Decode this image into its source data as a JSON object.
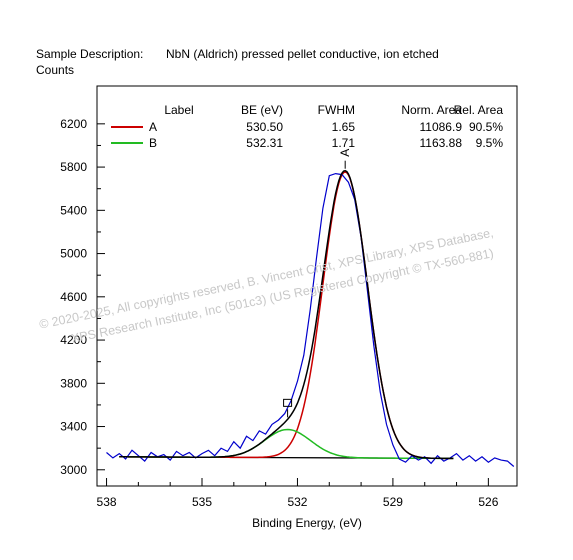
{
  "header": {
    "description_label": "Sample Description:",
    "description": "NbN (Aldrich) pressed pellet conductive, ion etched",
    "y_unit": "Counts"
  },
  "watermark": {
    "line1": "©  2020-2025,  All copyrights reserved,   B. Vincent Crist,  XPS Library, XPS Database,",
    "line2": "XPS Research Institute, Inc (501c3)   (US Registered Copyright © TX-560-881)"
  },
  "colors": {
    "raw": "#0000cc",
    "envelope": "#000000",
    "A": "#cc0000",
    "B": "#22bb22",
    "background": "#000000"
  },
  "chart_data": {
    "type": "line",
    "xlabel": "Binding Energy, (eV)",
    "ylabel": "Counts",
    "xlim": [
      538.3,
      525.1
    ],
    "ylim": [
      2850,
      6550
    ],
    "x_ticks": [
      538,
      535,
      532,
      529,
      526
    ],
    "y_ticks": [
      3000,
      3400,
      3800,
      4200,
      4600,
      5000,
      5400,
      5800,
      6200
    ],
    "grid": false,
    "legend_position": "top",
    "table": {
      "headers": [
        "Label",
        "BE (eV)",
        "FWHM",
        "Norm. Area",
        "Rel. Area"
      ],
      "rows": [
        [
          "A",
          "530.50",
          "1.65",
          "11086.9",
          "90.5%"
        ],
        [
          "B",
          "532.31",
          "1.71",
          "1163.88",
          "9.5%"
        ]
      ]
    },
    "peak_labels": [
      "A"
    ],
    "background": {
      "x": [
        537.6,
        527.1
      ],
      "y": [
        3120,
        3105
      ]
    },
    "peaks": [
      {
        "name": "A",
        "center": 530.5,
        "fwhm": 1.65,
        "height": 2645
      },
      {
        "name": "B",
        "center": 532.31,
        "fwhm": 1.71,
        "height": 260
      }
    ],
    "raw_series": {
      "name": "raw",
      "x": [
        538.0,
        537.8,
        537.6,
        537.4,
        537.2,
        537.0,
        536.8,
        536.6,
        536.4,
        536.2,
        536.0,
        535.8,
        535.6,
        535.4,
        535.2,
        535.0,
        534.8,
        534.6,
        534.4,
        534.2,
        534.0,
        533.8,
        533.6,
        533.4,
        533.2,
        533.0,
        532.8,
        532.6,
        532.4,
        532.2,
        532.0,
        531.8,
        531.6,
        531.4,
        531.2,
        531.0,
        530.8,
        530.6,
        530.4,
        530.2,
        530.0,
        529.8,
        529.6,
        529.4,
        529.2,
        529.0,
        528.8,
        528.6,
        528.4,
        528.2,
        528.0,
        527.8,
        527.6,
        527.4,
        527.2,
        527.0,
        526.8,
        526.6,
        526.4,
        526.2,
        526.0,
        525.8,
        525.6,
        525.4,
        525.2
      ],
      "y": [
        3160,
        3110,
        3150,
        3100,
        3180,
        3130,
        3080,
        3160,
        3120,
        3140,
        3090,
        3170,
        3130,
        3160,
        3110,
        3150,
        3180,
        3130,
        3200,
        3170,
        3260,
        3200,
        3310,
        3270,
        3360,
        3330,
        3420,
        3460,
        3520,
        3640,
        3820,
        4060,
        4480,
        4960,
        5420,
        5720,
        5740,
        5730,
        5660,
        5500,
        5150,
        4650,
        4150,
        3720,
        3420,
        3230,
        3100,
        3070,
        3130,
        3090,
        3120,
        3060,
        3130,
        3080,
        3110,
        3150,
        3090,
        3130,
        3080,
        3120,
        3070,
        3110,
        3090,
        3080,
        3030
      ]
    }
  }
}
